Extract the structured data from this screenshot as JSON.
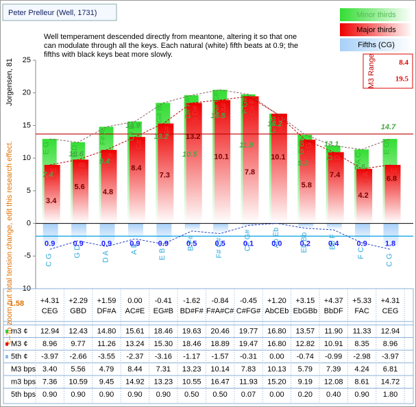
{
  "title": "Peter Prelleur (Well, 1731)",
  "description": [
    "Well temperament descended directly from meantone, altering it so that one",
    "can modulate through all the keys. Each natural (white) fifth beats at 0.9; the",
    "fifths with black keys beat more slowly."
  ],
  "y_label": "Jorgensen, 81",
  "note": "<--To zoom out total tension change, edit this research effect.",
  "total_change": -1.58,
  "m3_range": {
    "label": "M3 Range",
    "min": 8.4,
    "max": 19.5
  },
  "chart_data": {
    "type": "bar",
    "ylim": [
      -10,
      25
    ],
    "yticks": [
      -10,
      -5,
      0,
      5,
      10,
      15,
      20,
      25
    ],
    "column_changes": [
      "+4.31",
      "+2.29",
      "+1.59",
      "0.00",
      "-0.41",
      "-1.62",
      "-0.84",
      "-0.45",
      "+1.20",
      "+3.15",
      "+4.37",
      "+5.33",
      "+4.31"
    ],
    "categories": [
      "CEG",
      "GBD",
      "DF#A",
      "AC#E",
      "EG#B",
      "BD#F#",
      "F#A#C#",
      "C#FG#",
      "AbCEb",
      "EbGBb",
      "BbDF",
      "FAC",
      "CEG"
    ],
    "series": [
      {
        "name": "Minor thirds",
        "row_label": "m3 ¢",
        "color": "#33dd33",
        "values": [
          12.94,
          12.43,
          14.8,
          15.61,
          18.46,
          19.63,
          20.46,
          19.77,
          16.8,
          13.57,
          11.9,
          11.33,
          12.94
        ],
        "value_labels": [
          "12.94",
          "12.43",
          "14.80",
          "15.61",
          "18.46",
          "19.63",
          "20.46",
          "19.77",
          "16.80",
          "13.57",
          "11.90",
          "11.33",
          "12.94"
        ],
        "bar_notes": [
          "E G",
          "B D",
          "F# A",
          "C# E",
          "G# B",
          "D# F#",
          "A# C#",
          "F G#",
          "C Eb",
          "G Bb",
          "D F",
          "A C",
          "E G"
        ]
      },
      {
        "name": "Major thirds",
        "row_label": "M3 ¢",
        "color": "#ee0000",
        "values": [
          8.96,
          9.77,
          11.26,
          13.24,
          15.3,
          18.46,
          18.89,
          19.47,
          16.8,
          12.82,
          10.91,
          8.35,
          8.96
        ],
        "value_labels": [
          "8.96",
          "9.77",
          "11.26",
          "13.24",
          "15.30",
          "18.46",
          "18.89",
          "19.47",
          "16.80",
          "12.82",
          "10.91",
          "8.35",
          "8.96"
        ],
        "bar_notes": [
          "C E",
          "G B",
          "D F#",
          "A C#",
          "E G#",
          "B D#",
          "F# A#",
          "C# F",
          "Ab C",
          "Eb G",
          "Bb D",
          "F A",
          "C E"
        ]
      },
      {
        "name": "Fifths (CG)",
        "row_label": "5th ¢",
        "color": "#a8d0f8",
        "values": [
          -3.97,
          -2.66,
          -3.55,
          -2.37,
          -3.16,
          -1.17,
          -1.57,
          -0.31,
          0,
          -0.74,
          -0.99,
          -2.98,
          -3.97
        ],
        "value_labels": [
          "-3.97",
          "-2.66",
          "-3.55",
          "-2.37",
          "-3.16",
          "-1.17",
          "-1.57",
          "-0.31",
          "0.00",
          "-0.74",
          "-0.99",
          "-2.98",
          "-3.97"
        ],
        "bar_notes": [
          "C G",
          "G D",
          "D A",
          "A E",
          "E B",
          "B F#",
          "F# C#",
          "C# G#",
          "Ab Eb",
          "Eb Bb",
          "Bb F",
          "F C",
          "C G"
        ]
      }
    ],
    "beats": [
      {
        "row_label": "M3 bps",
        "color": "#7a0000",
        "values": [
          3.4,
          5.56,
          4.79,
          8.44,
          7.31,
          13.23,
          10.14,
          7.83,
          10.13,
          5.79,
          7.39,
          4.24,
          6.81
        ],
        "value_labels": [
          "3.40",
          "5.56",
          "4.79",
          "8.44",
          "7.31",
          "13.23",
          "10.14",
          "7.83",
          "10.13",
          "5.79",
          "7.39",
          "4.24",
          "6.81"
        ],
        "bar_labels": [
          "3.4",
          "5.6",
          "4.8",
          "8.4",
          "7.3",
          "13.2",
          "10.1",
          "7.8",
          "10.1",
          "5.8",
          "7.4",
          "4.2",
          "6.8"
        ]
      },
      {
        "row_label": "m3 bps",
        "color": "#44aa44",
        "values": [
          7.36,
          10.59,
          9.45,
          14.92,
          13.23,
          10.55,
          16.47,
          11.93,
          15.2,
          9.19,
          12.08,
          8.61,
          14.72
        ],
        "value_labels": [
          "7.36",
          "10.59",
          "9.45",
          "14.92",
          "13.23",
          "10.55",
          "16.47",
          "11.93",
          "15.20",
          "9.19",
          "12.08",
          "8.61",
          "14.72"
        ],
        "bar_labels": [
          "7.4",
          "10.6",
          "9.4",
          "14.9",
          "13.2",
          "10.5",
          "16.5",
          "11.9",
          "15.2",
          "9.2",
          "12.1",
          "8.6",
          "14.7"
        ]
      },
      {
        "row_label": "5th bps",
        "color": "#1a1aff",
        "values": [
          0.9,
          0.9,
          0.9,
          0.9,
          0.9,
          0.5,
          0.5,
          0.07,
          0,
          0.2,
          0.4,
          0.9,
          1.8
        ],
        "value_labels": [
          "0.90",
          "0.90",
          "0.90",
          "0.90",
          "0.90",
          "0.50",
          "0.50",
          "0.07",
          "0.00",
          "0.20",
          "0.40",
          "0.90",
          "1.80"
        ],
        "bar_labels": [
          "0.9",
          "0.9",
          "0.9",
          "0.9",
          "0.9",
          "0.5",
          "0.5",
          "0.1",
          "0.0",
          "0.2",
          "0.4",
          "0.9",
          "1.8"
        ]
      }
    ],
    "reference_lines": [
      {
        "value": 13.69,
        "color": "#c00000"
      },
      {
        "value": -1.96,
        "color": "#00a0e0"
      }
    ]
  }
}
